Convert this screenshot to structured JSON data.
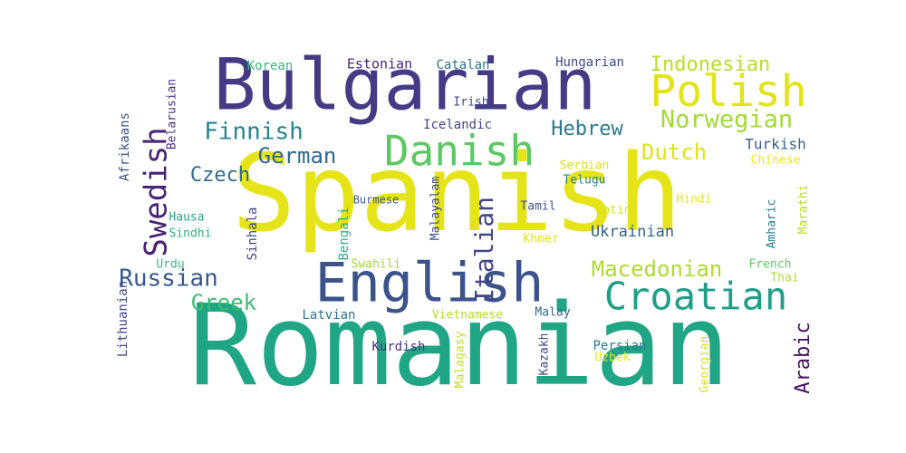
{
  "words": [
    {
      "text": "Romanian",
      "color": "#21a685",
      "vertical": false
    },
    {
      "text": "Spanish",
      "color": "#e5e419",
      "vertical": false
    },
    {
      "text": "Bulgarian",
      "color": "#443b84",
      "vertical": false
    },
    {
      "text": "English",
      "color": "#3b528b",
      "vertical": false
    },
    {
      "text": "Croatian",
      "color": "#1f9f88",
      "vertical": false
    },
    {
      "text": "Polish",
      "color": "#e2e418",
      "vertical": false
    },
    {
      "text": "Danish",
      "color": "#5cc863",
      "vertical": false
    },
    {
      "text": "Swedish",
      "color": "#482475",
      "vertical": true
    },
    {
      "text": "Italian",
      "color": "#404588",
      "vertical": true
    },
    {
      "text": "Norwegian",
      "color": "#a2da37",
      "vertical": false
    },
    {
      "text": "Macedonian",
      "color": "#addc30",
      "vertical": false
    },
    {
      "text": "Russian",
      "color": "#38598c",
      "vertical": false
    },
    {
      "text": "Indonesian",
      "color": "#b5de2b",
      "vertical": false
    },
    {
      "text": "Finnish",
      "color": "#25858e",
      "vertical": false
    },
    {
      "text": "German",
      "color": "#31678e",
      "vertical": false
    },
    {
      "text": "Greek",
      "color": "#3dbc74",
      "vertical": false
    },
    {
      "text": "Dutch",
      "color": "#dfe318",
      "vertical": false
    },
    {
      "text": "Czech",
      "color": "#2e6d8e",
      "vertical": false
    },
    {
      "text": "Hebrew",
      "color": "#2a788e",
      "vertical": false
    },
    {
      "text": "Arabic",
      "color": "#471365",
      "vertical": true
    },
    {
      "text": "Ukrainian",
      "color": "#33638d",
      "vertical": false
    },
    {
      "text": "Turkish",
      "color": "#355f8d",
      "vertical": false
    },
    {
      "text": "Estonian",
      "color": "#482878",
      "vertical": false
    },
    {
      "text": "Hungarian",
      "color": "#3e4989",
      "vertical": false
    },
    {
      "text": "Catalan",
      "color": "#2c728e",
      "vertical": false
    },
    {
      "text": "Korean",
      "color": "#35b779",
      "vertical": false
    },
    {
      "text": "Icelandic",
      "color": "#414487",
      "vertical": false
    },
    {
      "text": "Irish",
      "color": "#3e4c8a",
      "vertical": false
    },
    {
      "text": "Belarusian",
      "color": "#46327e",
      "vertical": true
    },
    {
      "text": "Afrikaans",
      "color": "#3b528b",
      "vertical": true
    },
    {
      "text": "Serbian",
      "color": "#d8e219",
      "vertical": false
    },
    {
      "text": "Chinese",
      "color": "#f1e51d",
      "vertical": false
    },
    {
      "text": "Telugu",
      "color": "#277f8e",
      "vertical": false
    },
    {
      "text": "Hindi",
      "color": "#e7e419",
      "vertical": false
    },
    {
      "text": "Tamil",
      "color": "#3b528b",
      "vertical": false
    },
    {
      "text": "Latin",
      "color": "#d2e21b",
      "vertical": false
    },
    {
      "text": "Burmese",
      "color": "#39568c",
      "vertical": false
    },
    {
      "text": "Malayalam",
      "color": "#3e4a89",
      "vertical": true
    },
    {
      "text": "Bengali",
      "color": "#2ab07f",
      "vertical": true
    },
    {
      "text": "Sinhala",
      "color": "#404688",
      "vertical": true
    },
    {
      "text": "Hausa",
      "color": "#22a884",
      "vertical": false
    },
    {
      "text": "Sindhi",
      "color": "#2db27d",
      "vertical": false
    },
    {
      "text": "Urdu",
      "color": "#3aba76",
      "vertical": false
    },
    {
      "text": "Swahili",
      "color": "#a0da39",
      "vertical": false
    },
    {
      "text": "Khmer",
      "color": "#e5e419",
      "vertical": false
    },
    {
      "text": "Amharic",
      "color": "#2a788e",
      "vertical": true
    },
    {
      "text": "Marathi",
      "color": "#b8de29",
      "vertical": true
    },
    {
      "text": "French",
      "color": "#5ec962",
      "vertical": false
    },
    {
      "text": "Thai",
      "color": "#b0dd2f",
      "vertical": false
    },
    {
      "text": "Lithuanian",
      "color": "#3e4989",
      "vertical": true
    },
    {
      "text": "Latvian",
      "color": "#2c728e",
      "vertical": false
    },
    {
      "text": "Vietnamese",
      "color": "#b5de2b",
      "vertical": false
    },
    {
      "text": "Malay",
      "color": "#31688e",
      "vertical": false
    },
    {
      "text": "Kurdish",
      "color": "#46327e",
      "vertical": false
    },
    {
      "text": "Malagasy",
      "color": "#c2df23",
      "vertical": true
    },
    {
      "text": "Kazakh",
      "color": "#3f4889",
      "vertical": true
    },
    {
      "text": "Persian",
      "color": "#2a788e",
      "vertical": false
    },
    {
      "text": "Uzbek",
      "color": "#e7e419",
      "vertical": false
    },
    {
      "text": "Georgian",
      "color": "#d5e21a",
      "vertical": true
    }
  ]
}
